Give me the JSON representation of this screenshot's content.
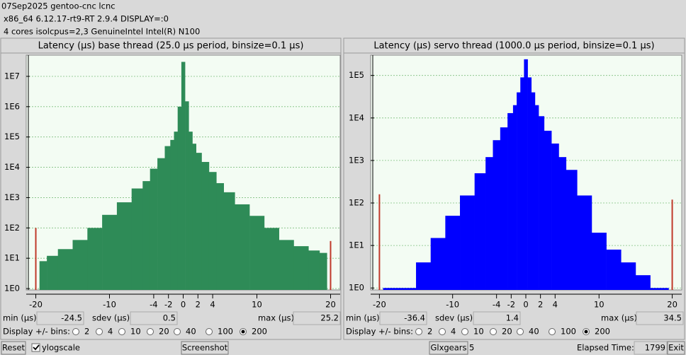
{
  "header": {
    "lines": [
      "07Sep2025 gentoo-cnc lcnc",
      "x86_64  6.12.17-rt9-RT  2.9.4  DISPLAY=:0",
      "4 cores  isolcpus=2,3  GenuineIntel  Intel(R) N100"
    ]
  },
  "chart_data": [
    {
      "type": "bar",
      "title": "Latency (µs) base thread (25.0 µs period, binsize=0.1 µs)",
      "x": [
        -19,
        -18,
        -16,
        -14,
        -12,
        -10,
        -8,
        -6,
        -5,
        -4,
        -3,
        -2,
        -1.5,
        -1,
        -0.5,
        0,
        0.5,
        1,
        1.5,
        2,
        3,
        4,
        5,
        6,
        8,
        10,
        12,
        14,
        16,
        18,
        19
      ],
      "values": [
        8,
        12,
        20,
        40,
        100,
        270,
        700,
        2000,
        3500,
        9000,
        20000,
        50000,
        80000,
        150000,
        1000000,
        30000000,
        1500000,
        150000,
        60000,
        30000,
        15000,
        7000,
        3000,
        1500,
        600,
        250,
        100,
        40,
        25,
        18,
        15
      ],
      "color": "#2e8b57",
      "overflow": {
        "x": [
          -20,
          20
        ],
        "values": [
          100,
          37
        ],
        "color": "#c0392b"
      },
      "xlim": [
        -21.3,
        21.3
      ],
      "xticks": [
        -20,
        -10,
        -4,
        -2,
        0,
        2,
        4,
        10,
        20
      ],
      "ylim": [
        0.9,
        50000000
      ],
      "log_y": true,
      "grid": true,
      "yticks": [
        {
          "value": 1,
          "label": "1E0"
        },
        {
          "value": 10,
          "label": "1E1"
        },
        {
          "value": 100,
          "label": "1E2"
        },
        {
          "value": 1000,
          "label": "1E3"
        },
        {
          "value": 10000,
          "label": "1E4"
        },
        {
          "value": 100000,
          "label": "1E5"
        },
        {
          "value": 1000000,
          "label": "1E6"
        },
        {
          "value": 10000000,
          "label": "1E7"
        }
      ]
    },
    {
      "type": "bar",
      "title": "Latency (µs) servo thread (1000.0 µs period, binsize=0.1 µs)",
      "x": [
        -19,
        -18,
        -16,
        -14,
        -12,
        -10,
        -8,
        -6,
        -5,
        -4,
        -3,
        -2,
        -1.5,
        -1,
        -0.5,
        0,
        0.5,
        1,
        1.5,
        2,
        3,
        4,
        5,
        6,
        8,
        10,
        12,
        14,
        16,
        18,
        19
      ],
      "values": [
        1,
        1,
        1,
        4,
        15,
        50,
        150,
        500,
        1200,
        3000,
        6000,
        13000,
        20000,
        40000,
        90000,
        240000,
        90000,
        40000,
        20000,
        11000,
        5000,
        2500,
        1200,
        600,
        150,
        20,
        8,
        4,
        2,
        1,
        1
      ],
      "color": "#0000ff",
      "overflow": {
        "x": [
          -20,
          20
        ],
        "values": [
          160,
          120
        ],
        "color": "#c0392b"
      },
      "xlim": [
        -21.2,
        21.3
      ],
      "xticks": [
        -20,
        -10,
        -4,
        -2,
        0,
        2,
        4,
        10,
        20
      ],
      "ylim": [
        0.9,
        300000
      ],
      "log_y": true,
      "grid": true,
      "yticks": [
        {
          "value": 1,
          "label": "1E0"
        },
        {
          "value": 10,
          "label": "1E1"
        },
        {
          "value": 100,
          "label": "1E2"
        },
        {
          "value": 1000,
          "label": "1E3"
        },
        {
          "value": 10000,
          "label": "1E4"
        },
        {
          "value": 100000,
          "label": "1E5"
        }
      ]
    }
  ],
  "panels": [
    {
      "stats": [
        {
          "label": "min (µs)",
          "value": -24.5
        },
        {
          "label": "sdev (µs)",
          "value": 0.5
        },
        {
          "label": "max (µs)",
          "value": 25.2
        }
      ],
      "bins_label": "Display +/- bins:",
      "bins_options": [
        2,
        4,
        10,
        20,
        40,
        100,
        200
      ],
      "bins_selected": 200
    },
    {
      "stats": [
        {
          "label": "min (µs)",
          "value": -36.4
        },
        {
          "label": "sdev (µs)",
          "value": 1.4
        },
        {
          "label": "max (µs)",
          "value": 34.5
        }
      ],
      "bins_label": "Display +/- bins:",
      "bins_options": [
        2,
        4,
        10,
        20,
        40,
        100,
        200
      ],
      "bins_selected": 200
    }
  ],
  "footer": {
    "reset": "Reset",
    "ylogscale": {
      "label": "ylogscale",
      "checked": true
    },
    "screenshot": "Screenshot",
    "glxgears": "Glxgears",
    "glxgears_count": 5,
    "elapsed_label": "Elapsed Time:",
    "elapsed": 1799,
    "exit": "Exit"
  }
}
